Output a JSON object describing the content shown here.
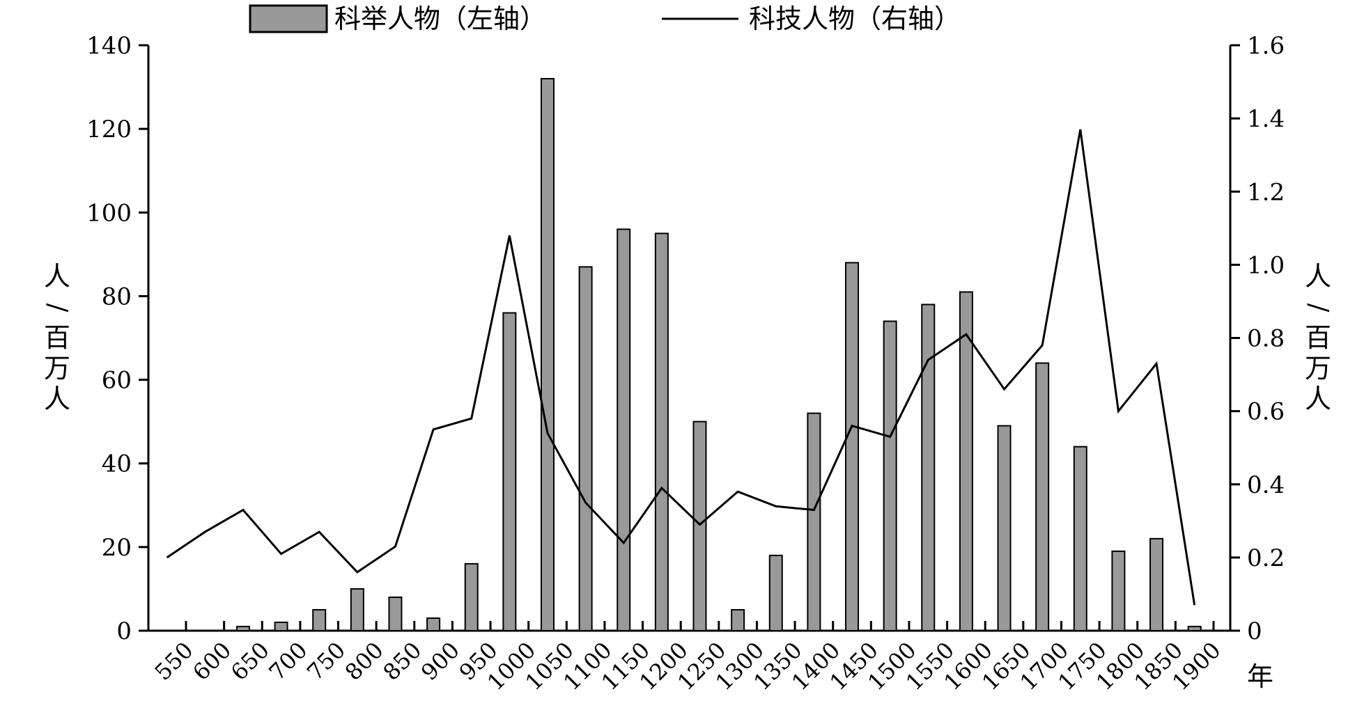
{
  "chart_data": {
    "type": "bar+line",
    "categories": [
      "550",
      "600",
      "650",
      "700",
      "750",
      "800",
      "850",
      "900",
      "950",
      "1000",
      "1050",
      "1100",
      "1150",
      "1200",
      "1250",
      "1300",
      "1350",
      "1400",
      "1450",
      "1500",
      "1550",
      "1600",
      "1650",
      "1700",
      "1750",
      "1800",
      "1850",
      "1900"
    ],
    "x_unit_label": "年",
    "series": [
      {
        "name": "科举人物（左轴）",
        "type": "bar",
        "axis": "left",
        "color": "#999999",
        "values": [
          0,
          0,
          1,
          2,
          5,
          10,
          8,
          3,
          16,
          76,
          132,
          87,
          96,
          95,
          50,
          5,
          18,
          52,
          88,
          74,
          78,
          81,
          49,
          64,
          44,
          19,
          22,
          1
        ]
      },
      {
        "name": "科技人物（右轴）",
        "type": "line",
        "axis": "right",
        "color": "#000000",
        "values": [
          0.2,
          0.27,
          0.33,
          0.21,
          0.27,
          0.16,
          0.23,
          0.55,
          0.58,
          1.08,
          0.54,
          0.35,
          0.24,
          0.39,
          0.29,
          0.38,
          0.34,
          0.33,
          0.56,
          0.53,
          0.74,
          0.81,
          0.66,
          0.78,
          1.37,
          0.6,
          0.73,
          0.07
        ]
      }
    ],
    "left_axis": {
      "label": "人/百万人",
      "ylim": [
        0,
        140
      ],
      "ticks": [
        "0",
        "20",
        "40",
        "60",
        "80",
        "100",
        "120",
        "140"
      ]
    },
    "right_axis": {
      "label": "人/百万人",
      "ylim": [
        0,
        1.6
      ],
      "ticks": [
        "0",
        "0.2",
        "0.4",
        "0.6",
        "0.8",
        "1.0",
        "1.2",
        "1.4",
        "1.6"
      ]
    },
    "legend_position": "top-center",
    "grid": false
  }
}
